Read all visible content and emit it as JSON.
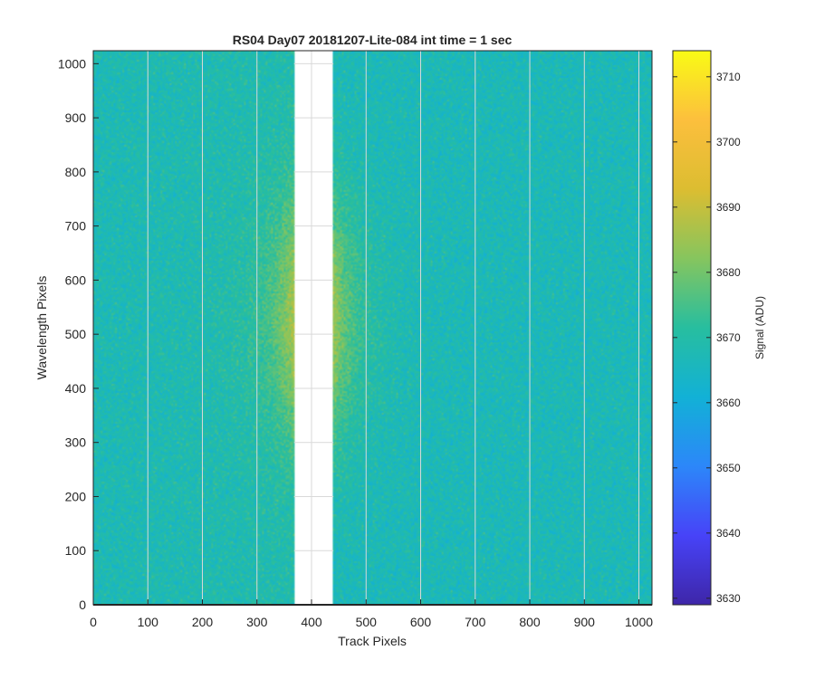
{
  "chart_data": {
    "type": "heatmap",
    "title": "RS04 Day07 20181207-Lite-084 int time = 1 sec",
    "xlabel": "Track Pixels",
    "ylabel": "Wavelength Pixels",
    "xlim": [
      0,
      1024
    ],
    "ylim": [
      0,
      1024
    ],
    "x_ticks": [
      0,
      100,
      200,
      300,
      400,
      500,
      600,
      700,
      800,
      900,
      1000
    ],
    "y_ticks": [
      0,
      100,
      200,
      300,
      400,
      500,
      600,
      700,
      800,
      900,
      1000
    ],
    "grid": true,
    "masked_columns": [
      368,
      440
    ],
    "values": {
      "base_signal": 3667,
      "edge_peak_signal": 3685,
      "peak_row": 530,
      "noise_amplitude": 6
    },
    "colorbar": {
      "label": "Signal (ADU)",
      "range": [
        3629,
        3714
      ],
      "ticks": [
        3630,
        3640,
        3650,
        3660,
        3670,
        3680,
        3690,
        3700,
        3710
      ],
      "colormap": "parula",
      "colors": [
        "#3e26a8",
        "#4743f8",
        "#2c87f9",
        "#12b1d6",
        "#27be9f",
        "#86c55e",
        "#dcbd31",
        "#fcbf3d",
        "#f9fb15"
      ]
    }
  }
}
